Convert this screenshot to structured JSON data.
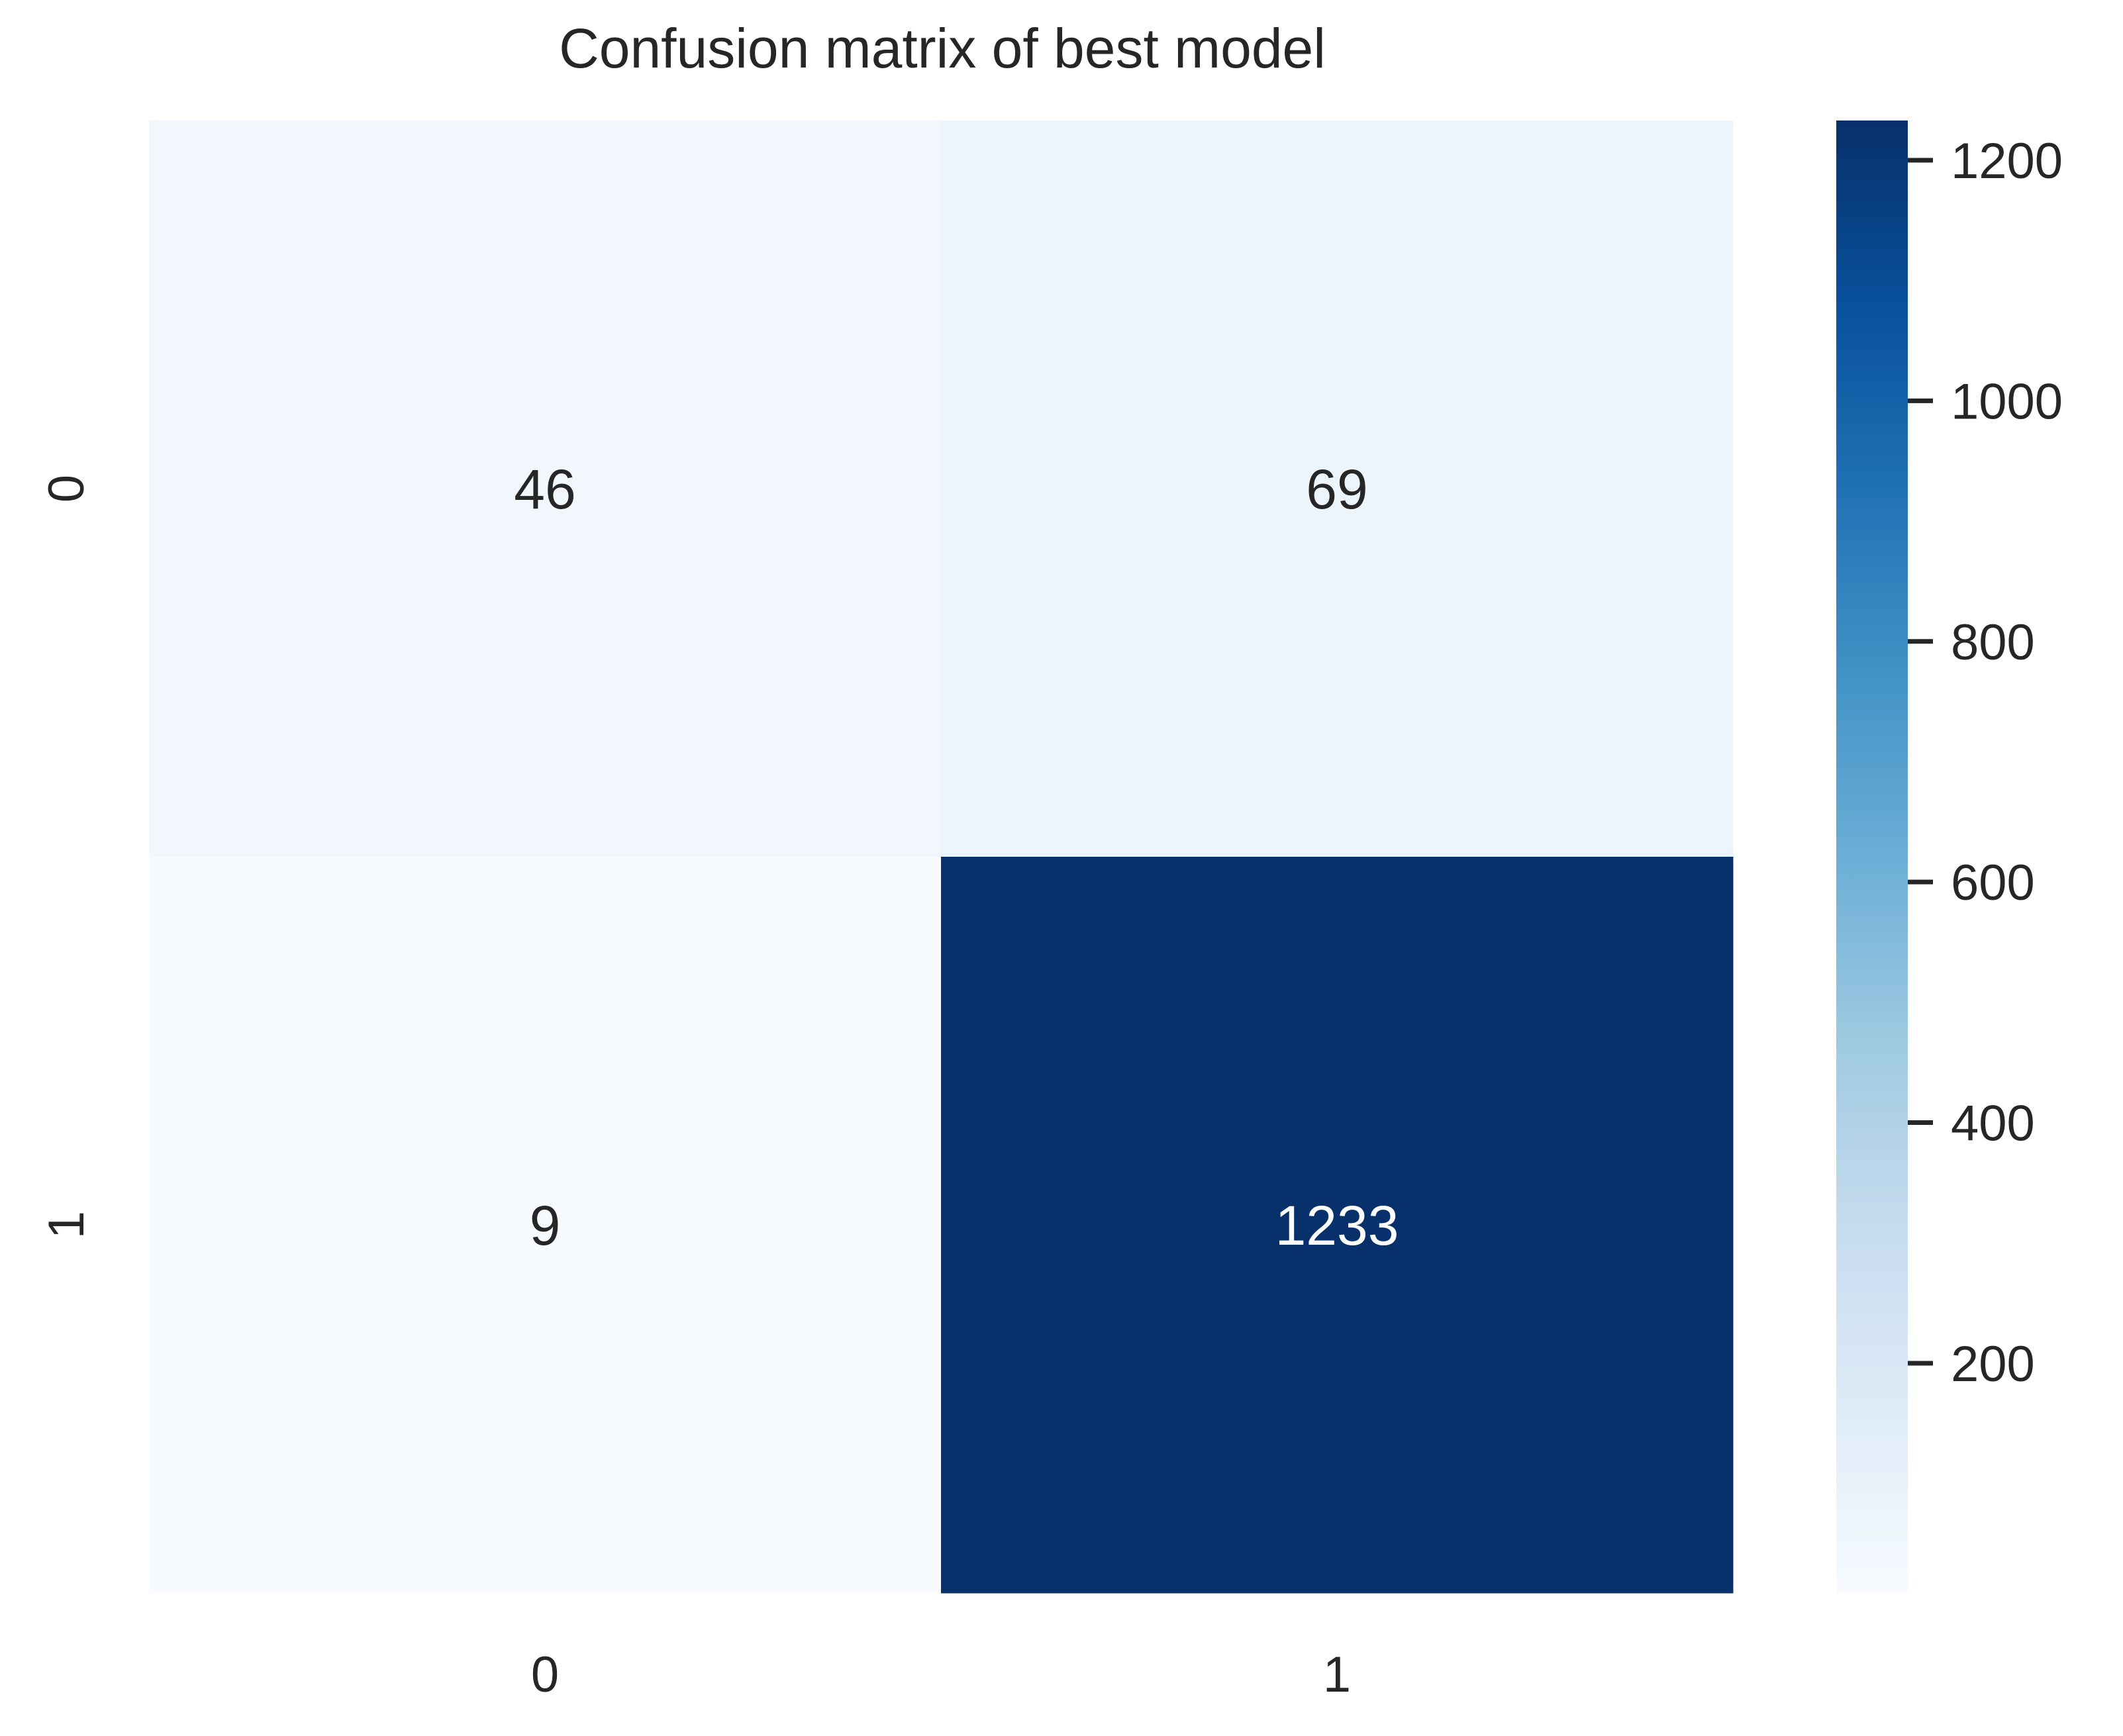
{
  "chart_data": {
    "type": "heatmap",
    "title": "Confusion matrix of best model",
    "xlabel": "",
    "ylabel": "",
    "x_tick_labels": [
      "0",
      "1"
    ],
    "y_tick_labels": [
      "0",
      "1"
    ],
    "values": [
      [
        46,
        69
      ],
      [
        9,
        1233
      ]
    ],
    "colorscale": "Blues",
    "color_range": [
      9,
      1233
    ],
    "colorbar": {
      "ticks": [
        200,
        400,
        600,
        800,
        1000,
        1200
      ],
      "tick_labels": [
        "200",
        "400",
        "600",
        "800",
        "1000",
        "1200"
      ]
    },
    "grid": false
  }
}
